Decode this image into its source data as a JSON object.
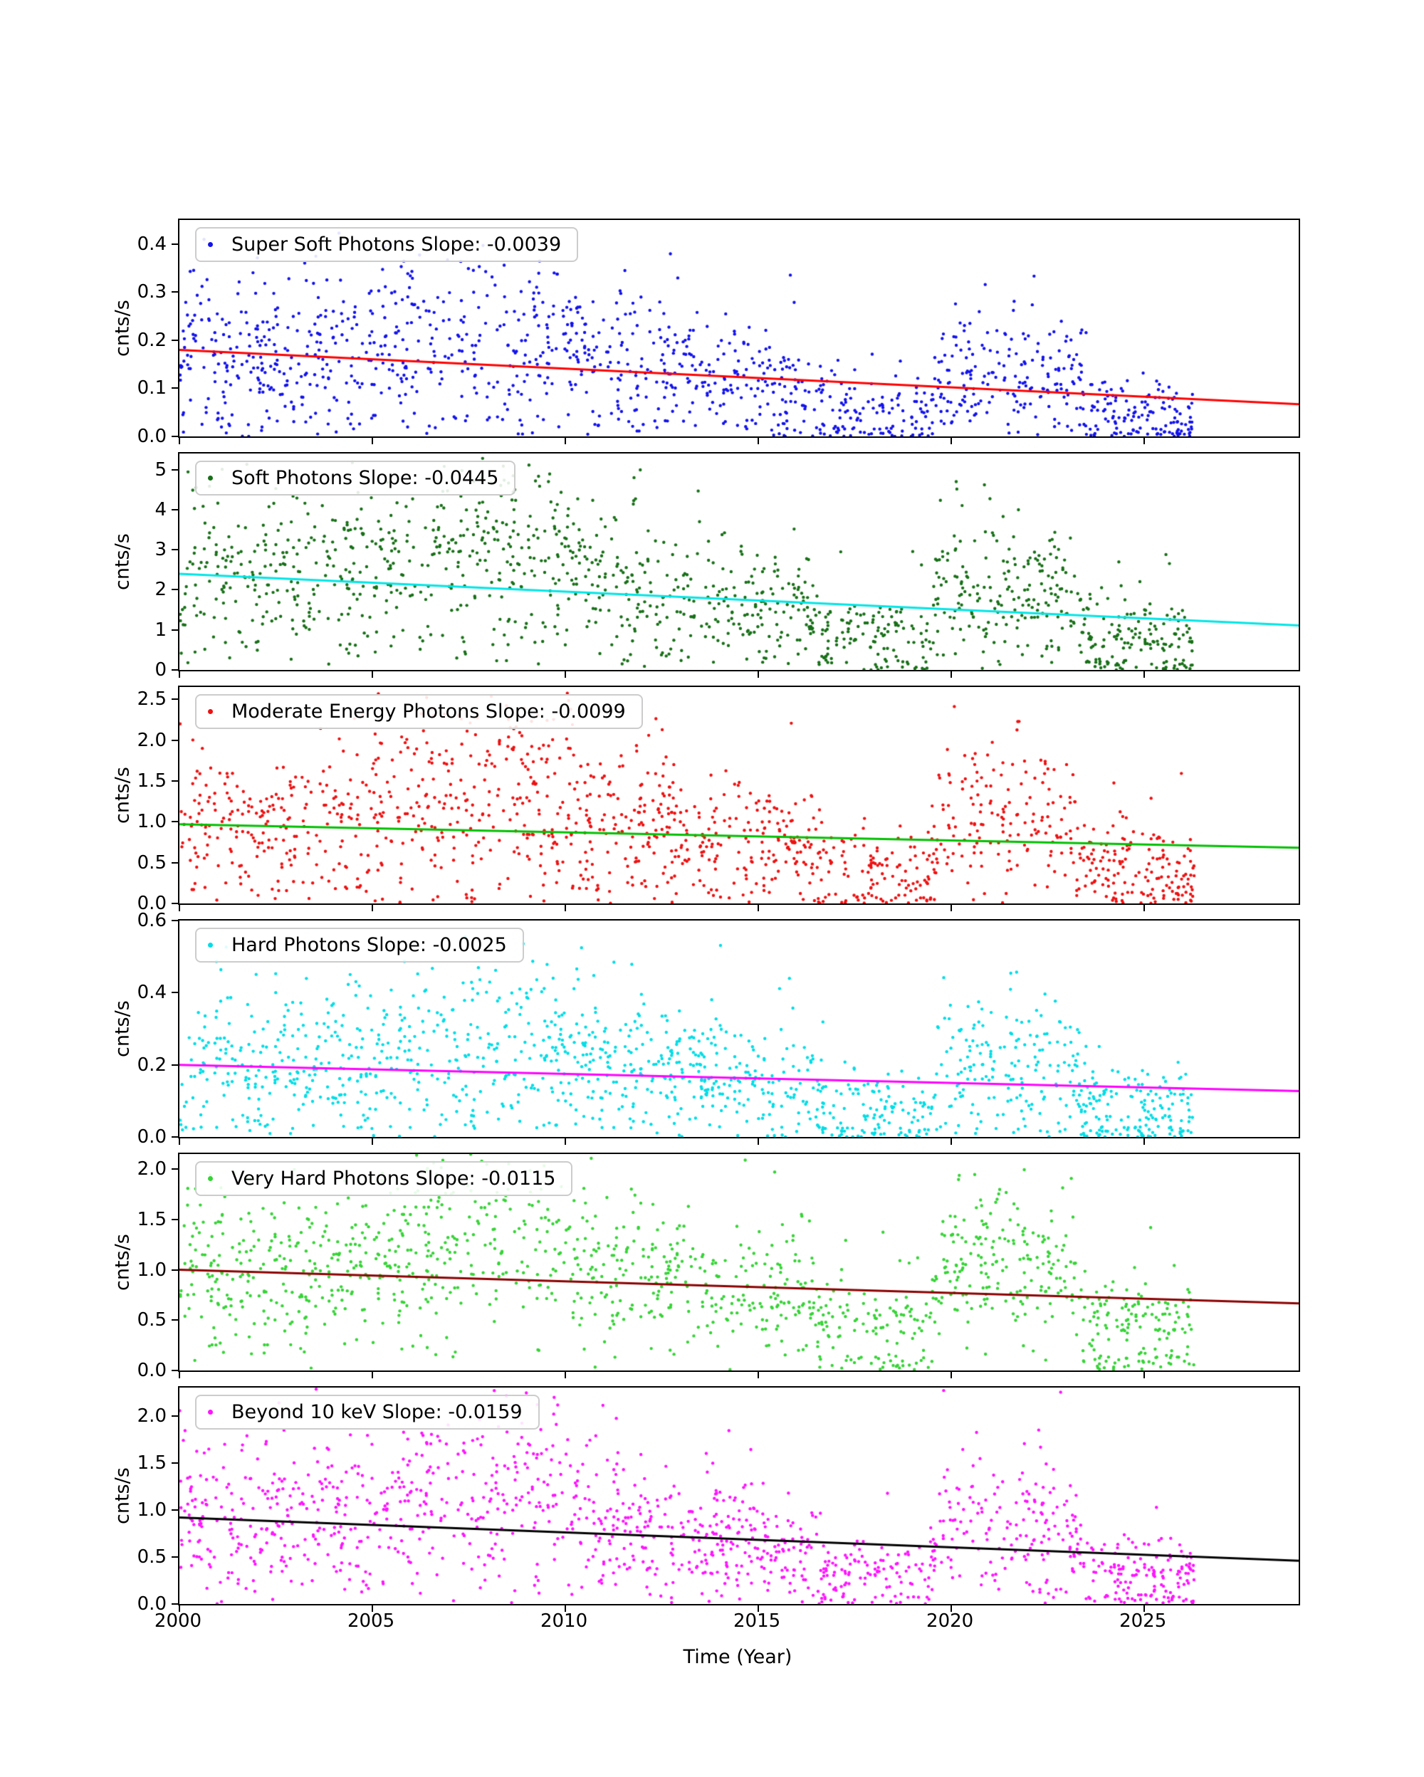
{
  "figure": {
    "xlabel": "Time (Year)",
    "x_tick_labels": [
      "2000",
      "2005",
      "2010",
      "2015",
      "2020",
      "2025"
    ],
    "x_tick_years": [
      2000,
      2005,
      2010,
      2015,
      2020,
      2025
    ],
    "x_range": [
      2000,
      2029
    ],
    "data_x_max": 2026.3,
    "background": "#ffffff",
    "modulation": [
      [
        2000,
        1.0
      ],
      [
        2003,
        1.0
      ],
      [
        2005,
        1.1
      ],
      [
        2007,
        1.4
      ],
      [
        2009,
        1.45
      ],
      [
        2011,
        1.15
      ],
      [
        2013,
        1.0
      ],
      [
        2016,
        0.9
      ],
      [
        2016.9,
        0.6
      ],
      [
        2019.4,
        0.55
      ],
      [
        2019.8,
        1.3
      ],
      [
        2021,
        1.5
      ],
      [
        2022.5,
        1.35
      ],
      [
        2023.2,
        1.2
      ],
      [
        2023.5,
        0.7
      ],
      [
        2026.3,
        0.65
      ]
    ]
  },
  "chart_data": [
    {
      "type": "scatter",
      "series_name": "Super Soft Photons",
      "legend": "Super Soft Photons Slope: -0.0039",
      "slope_per_year": -0.0039,
      "trend_y_at_2000": 0.18,
      "ylabel": "cnts/s",
      "y_tick_labels": [
        "0.0",
        "0.1",
        "0.2",
        "0.3",
        "0.4"
      ],
      "y_tick_values": [
        0,
        0.1,
        0.2,
        0.3,
        0.4
      ],
      "ylim": [
        0,
        0.45
      ],
      "dot_color": "#1212ee",
      "trend_color": "#ff0000",
      "n_points": 1350,
      "seed": 101,
      "spread": 0.55
    },
    {
      "type": "scatter",
      "series_name": "Soft Photons",
      "legend": "Soft Photons Slope: -0.0445",
      "slope_per_year": -0.0445,
      "trend_y_at_2000": 2.4,
      "ylabel": "cnts/s",
      "y_tick_labels": [
        "0",
        "1",
        "2",
        "3",
        "4",
        "5"
      ],
      "y_tick_values": [
        0,
        1,
        2,
        3,
        4,
        5
      ],
      "ylim": [
        0,
        5.4
      ],
      "dot_color": "#177017",
      "trend_color": "#00e5e5",
      "n_points": 1350,
      "seed": 102,
      "spread": 0.45
    },
    {
      "type": "scatter",
      "series_name": "Moderate Energy Photons",
      "legend": "Moderate Energy Photons Slope: -0.0099",
      "slope_per_year": -0.0099,
      "trend_y_at_2000": 0.97,
      "ylabel": "cnts/s",
      "y_tick_labels": [
        "0.0",
        "0.5",
        "1.0",
        "1.5",
        "2.0",
        "2.5"
      ],
      "y_tick_values": [
        0,
        0.5,
        1.0,
        1.5,
        2.0,
        2.5
      ],
      "ylim": [
        0,
        2.65
      ],
      "dot_color": "#ee1111",
      "trend_color": "#00c000",
      "n_points": 1350,
      "seed": 103,
      "spread": 0.5
    },
    {
      "type": "scatter",
      "series_name": "Hard Photons",
      "legend": "Hard Photons Slope: -0.0025",
      "slope_per_year": -0.0025,
      "trend_y_at_2000": 0.2,
      "ylabel": "cnts/s",
      "y_tick_labels": [
        "0.0",
        "0.2",
        "0.4",
        "0.6"
      ],
      "y_tick_values": [
        0,
        0.2,
        0.4,
        0.6
      ],
      "ylim": [
        0,
        0.6
      ],
      "dot_color": "#00dde6",
      "trend_color": "#ff00ff",
      "n_points": 1350,
      "seed": 104,
      "spread": 0.55
    },
    {
      "type": "scatter",
      "series_name": "Very Hard Photons",
      "legend": "Very Hard Photons Slope: -0.0115",
      "slope_per_year": -0.0115,
      "trend_y_at_2000": 1.0,
      "ylabel": "cnts/s",
      "y_tick_labels": [
        "0.0",
        "0.5",
        "1.0",
        "1.5",
        "2.0"
      ],
      "y_tick_values": [
        0,
        0.5,
        1.0,
        1.5,
        2.0
      ],
      "ylim": [
        0,
        2.15
      ],
      "dot_color": "#35d435",
      "trend_color": "#8b0000",
      "n_points": 1350,
      "seed": 105,
      "spread": 0.4
    },
    {
      "type": "scatter",
      "series_name": "Beyond 10 keV",
      "legend": "Beyond 10 keV Slope: -0.0159",
      "slope_per_year": -0.0159,
      "trend_y_at_2000": 0.92,
      "ylabel": "cnts/s",
      "y_tick_labels": [
        "0.0",
        "0.5",
        "1.0",
        "1.5",
        "2.0"
      ],
      "y_tick_values": [
        0,
        0.5,
        1.0,
        1.5,
        2.0
      ],
      "ylim": [
        0,
        2.3
      ],
      "dot_color": "#ff14ff",
      "trend_color": "#000000",
      "n_points": 1350,
      "seed": 106,
      "spread": 0.45
    }
  ]
}
